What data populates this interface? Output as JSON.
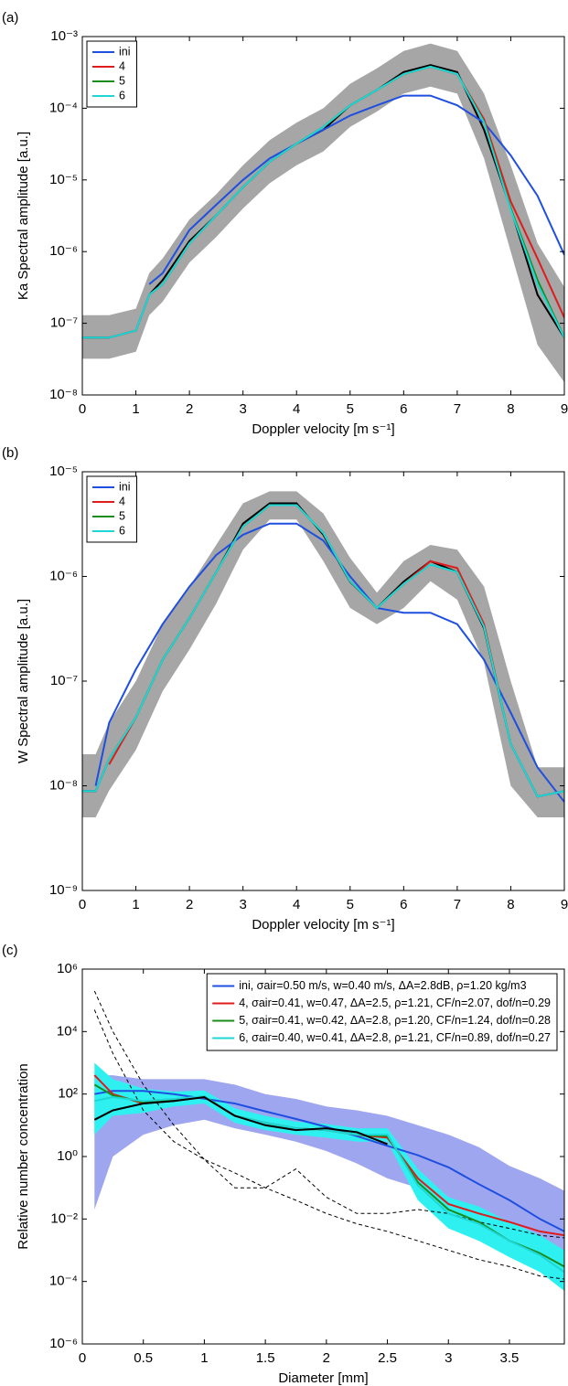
{
  "chart_data": [
    {
      "type": "line",
      "label": "(a)",
      "xlabel": "Doppler velocity [m s⁻¹]",
      "ylabel": "Ka Spectral amplitude [a.u.]",
      "yscale": "log",
      "legend": "upper left",
      "xlim": [
        0,
        9
      ],
      "xticks": [
        0,
        1,
        2,
        3,
        4,
        5,
        6,
        7,
        8,
        9
      ],
      "ylim": [
        1e-08,
        0.001
      ],
      "yticks": [
        {
          "value": 1e-08,
          "label": "10⁻⁸"
        },
        {
          "value": 1e-07,
          "label": "10⁻⁷"
        },
        {
          "value": 1e-06,
          "label": "10⁻⁶"
        },
        {
          "value": 1e-05,
          "label": "10⁻⁵"
        },
        {
          "value": 0.0001,
          "label": "10⁻⁴"
        },
        {
          "value": 0.001,
          "label": "10⁻³"
        }
      ],
      "x": [
        0,
        0.5,
        1,
        1.25,
        1.5,
        2,
        2.5,
        3,
        3.5,
        4,
        4.5,
        5,
        5.5,
        6,
        6.5,
        7,
        7.5,
        8,
        8.5,
        9
      ],
      "bands": [
        {
          "color": "#a6a6a6",
          "upper": [
            1.3e-07,
            1.3e-07,
            1.6e-07,
            5e-07,
            8e-07,
            2.8e-06,
            6.3e-06,
            1.6e-05,
            3.6e-05,
            6.3e-05,
            0.0001,
            0.00022,
            0.00036,
            0.00063,
            0.0008,
            0.00063,
            0.00016,
            1.6e-05,
            1.3e-06,
            3.2e-07
          ],
          "lower": [
            3.2e-08,
            3.2e-08,
            4e-08,
            1.3e-07,
            2e-07,
            7e-07,
            1.6e-06,
            4e-06,
            9e-06,
            1.6e-05,
            2.5e-05,
            5.5e-05,
            9e-05,
            0.00016,
            0.0002,
            0.00016,
            2e-05,
            1e-06,
            5e-08,
            1.5e-08
          ]
        }
      ],
      "observed": {
        "color": "#000000",
        "values": [
          6.3e-08,
          6.3e-08,
          7.9e-08,
          2.5e-07,
          4e-07,
          1.4e-06,
          3.2e-06,
          7.9e-06,
          1.8e-05,
          3.2e-05,
          5e-05,
          0.00011,
          0.00018,
          0.00032,
          0.0004,
          0.00032,
          5e-05,
          4e-06,
          2.5e-07,
          6.3e-08
        ]
      },
      "series": [
        {
          "name": "ini",
          "color": "#1f4fe0",
          "values": [
            null,
            null,
            null,
            3.5e-07,
            5e-07,
            2e-06,
            4.5e-06,
            1e-05,
            2e-05,
            3.2e-05,
            5e-05,
            7.9e-05,
            0.00011,
            0.00015,
            0.00015,
            0.00011,
            6.3e-05,
            2.2e-05,
            6e-06,
            9e-07
          ]
        },
        {
          "name": "4",
          "color": "#e01b1b",
          "values": [
            null,
            null,
            null,
            2.5e-07,
            3.5e-07,
            1.3e-06,
            3.2e-06,
            7.9e-06,
            1.8e-05,
            3.2e-05,
            5.5e-05,
            0.00011,
            0.00018,
            0.0003,
            0.00038,
            0.0003,
            7e-05,
            5e-06,
            8e-07,
            1.2e-07
          ]
        },
        {
          "name": "5",
          "color": "#1a8c1a",
          "values": [
            null,
            null,
            null,
            2.5e-07,
            3.5e-07,
            1.3e-06,
            3.2e-06,
            7.9e-06,
            1.8e-05,
            3.2e-05,
            5.5e-05,
            0.00011,
            0.00018,
            0.0003,
            0.00038,
            0.0003,
            6.5e-05,
            4e-06,
            4e-07,
            6.3e-08
          ]
        },
        {
          "name": "6",
          "color": "#1fd6d6",
          "values": [
            6.3e-08,
            6.3e-08,
            7.9e-08,
            2.5e-07,
            3.5e-07,
            1.3e-06,
            3.2e-06,
            7.9e-06,
            1.8e-05,
            3.2e-05,
            5.5e-05,
            0.00011,
            0.00018,
            0.0003,
            0.00038,
            0.0003,
            6.3e-05,
            3.8e-06,
            3.5e-07,
            6.3e-08
          ]
        }
      ]
    },
    {
      "type": "line",
      "label": "(b)",
      "xlabel": "Doppler velocity [m s⁻¹]",
      "ylabel": "W Spectral amplitude [a.u.]",
      "yscale": "log",
      "legend": "upper left",
      "xlim": [
        0,
        9
      ],
      "xticks": [
        0,
        1,
        2,
        3,
        4,
        5,
        6,
        7,
        8,
        9
      ],
      "ylim": [
        1e-09,
        1e-05
      ],
      "yticks": [
        {
          "value": 1e-09,
          "label": "10⁻⁹"
        },
        {
          "value": 1e-08,
          "label": "10⁻⁸"
        },
        {
          "value": 1e-07,
          "label": "10⁻⁷"
        },
        {
          "value": 1e-06,
          "label": "10⁻⁶"
        },
        {
          "value": 1e-05,
          "label": "10⁻⁵"
        }
      ],
      "x": [
        0,
        0.25,
        0.5,
        1,
        1.5,
        2,
        2.5,
        3,
        3.5,
        4,
        4.5,
        5,
        5.5,
        6,
        6.5,
        7,
        7.5,
        8,
        8.5,
        9
      ],
      "bands": [
        {
          "color": "#a6a6a6",
          "upper": [
            2e-08,
            2e-08,
            4e-08,
            1e-07,
            3.5e-07,
            8e-07,
            2e-06,
            5e-06,
            6.5e-06,
            6.5e-06,
            4e-06,
            1.5e-06,
            7e-07,
            1.4e-06,
            2e-06,
            1.8e-06,
            8e-07,
            1e-07,
            1.5e-08,
            1.5e-08
          ],
          "lower": [
            5e-09,
            5e-09,
            9e-09,
            2.2e-08,
            8e-08,
            2e-07,
            5.5e-07,
            1.8e-06,
            3.5e-06,
            3.5e-06,
            1.4e-06,
            5e-07,
            3.5e-07,
            5e-07,
            9e-07,
            6e-07,
            1.5e-07,
            1e-08,
            5e-09,
            5e-09
          ]
        }
      ],
      "observed": {
        "color": "#000000",
        "values": [
          8.9e-09,
          8.9e-09,
          1.8e-08,
          4.5e-08,
          1.6e-07,
          4e-07,
          1.1e-06,
          3.2e-06,
          5e-06,
          5e-06,
          2.5e-06,
          8.9e-07,
          5e-07,
          8.9e-07,
          1.4e-06,
          1.1e-06,
          3.2e-07,
          2.5e-08,
          7.9e-09,
          8.9e-09
        ]
      },
      "series": [
        {
          "name": "ini",
          "color": "#1f4fe0",
          "values": [
            null,
            1e-08,
            4e-08,
            1.3e-07,
            3.5e-07,
            8e-07,
            1.6e-06,
            2.5e-06,
            3.2e-06,
            3.2e-06,
            2.2e-06,
            1e-06,
            5e-07,
            4.5e-07,
            4.5e-07,
            3.5e-07,
            1.6e-07,
            5e-08,
            1.5e-08,
            7e-09
          ]
        },
        {
          "name": "4",
          "color": "#e01b1b",
          "values": [
            null,
            null,
            1.6e-08,
            4.5e-08,
            1.6e-07,
            4e-07,
            1.1e-06,
            3e-06,
            4.8e-06,
            4.8e-06,
            2.6e-06,
            9e-07,
            5e-07,
            8.5e-07,
            1.4e-06,
            1.2e-06,
            3.5e-07,
            2.5e-08,
            null,
            null
          ]
        },
        {
          "name": "5",
          "color": "#1a8c1a",
          "values": [
            null,
            null,
            1.8e-08,
            4.5e-08,
            1.6e-07,
            4e-07,
            1.1e-06,
            3e-06,
            4.8e-06,
            4.8e-06,
            2.6e-06,
            9e-07,
            5e-07,
            8.5e-07,
            1.3e-06,
            1.1e-06,
            3.3e-07,
            2.5e-08,
            null,
            null
          ]
        },
        {
          "name": "6",
          "color": "#1fd6d6",
          "values": [
            8.9e-09,
            8.9e-09,
            1.8e-08,
            4.5e-08,
            1.6e-07,
            4e-07,
            1.1e-06,
            3e-06,
            4.8e-06,
            4.8e-06,
            2.6e-06,
            9e-07,
            5e-07,
            8.5e-07,
            1.3e-06,
            1.1e-06,
            3.3e-07,
            2.5e-08,
            7.9e-09,
            8.9e-09
          ]
        }
      ]
    },
    {
      "type": "line",
      "label": "(c)",
      "xlabel": "Diameter [mm]",
      "ylabel": "Relative number concentration",
      "yscale": "log",
      "legend": "upper right",
      "xlim": [
        0,
        3.95
      ],
      "xticks": [
        0,
        0.5,
        1,
        1.5,
        2,
        2.5,
        3,
        3.5
      ],
      "ylim": [
        1e-06,
        1000000
      ],
      "yticks": [
        {
          "value": 1e-06,
          "label": "10⁻⁶"
        },
        {
          "value": 0.0001,
          "label": "10⁻⁴"
        },
        {
          "value": 0.01,
          "label": "10⁻²"
        },
        {
          "value": 1,
          "label": "10⁰"
        },
        {
          "value": 100,
          "label": "10²"
        },
        {
          "value": 10000,
          "label": "10⁴"
        },
        {
          "value": 1000000,
          "label": "10⁶"
        }
      ],
      "x": [
        0.1,
        0.25,
        0.5,
        0.75,
        1,
        1.25,
        1.5,
        1.75,
        2,
        2.25,
        2.5,
        2.75,
        3,
        3.25,
        3.5,
        3.75,
        3.95
      ],
      "bands": [
        {
          "color": "#9fa6f0",
          "upper": [
            400,
            400,
            300,
            300,
            300,
            200,
            100,
            70,
            40,
            30,
            20,
            10,
            5,
            2,
            0.5,
            0.2,
            0.08
          ],
          "lower": [
            0.02,
            1,
            5,
            10,
            15,
            8,
            5,
            3,
            1.5,
            0.6,
            0.2,
            0.1,
            0.05,
            0.02,
            0.005,
            0.002,
            0.001
          ]
        },
        {
          "color": "#2ff0f0",
          "upper": [
            1000,
            300,
            150,
            120,
            130,
            35,
            20,
            13,
            11,
            8,
            8,
            0.4,
            0.05,
            0.025,
            0.008,
            0.003,
            0.001
          ],
          "lower": [
            5,
            20,
            25,
            40,
            50,
            12,
            7,
            5,
            4,
            3,
            3,
            0.04,
            0.005,
            0.002,
            0.0006,
            0.0002,
            5e-05
          ]
        }
      ],
      "dashed": [
        {
          "color": "#000000",
          "values": [
            200000,
            10000,
            200,
            10,
            0.8,
            0.1,
            0.1,
            0.4,
            0.05,
            0.015,
            0.015,
            0.02,
            0.015,
            0.008,
            0.005,
            0.003,
            0.0025
          ]
        },
        {
          "color": "#000000",
          "values": [
            50000,
            2000,
            30,
            3,
            0.8,
            0.3,
            0.1,
            0.04,
            0.015,
            0.007,
            0.004,
            0.002,
            0.001,
            0.0005,
            0.0003,
            0.00015,
            0.00012
          ]
        }
      ],
      "observed": {
        "color": "#000000",
        "values": [
          15,
          30,
          50,
          60,
          80,
          20,
          10,
          7,
          8,
          6,
          2.5,
          null,
          null,
          null,
          null,
          null,
          null
        ]
      },
      "series": [
        {
          "name": "ini, σair=0.50 m/s, w=0.40 m/s, ΔA=2.8dB, ρ=1.20 kg/m3",
          "color": "#1f4fe0",
          "values": [
            100,
            126,
            126,
            100,
            71,
            50,
            28,
            16,
            8.9,
            4.5,
            2.2,
            1.1,
            0.45,
            0.13,
            0.04,
            0.01,
            0.004
          ]
        },
        {
          "name": "4, σair=0.41, w=0.47, ΔA=2.5,  ρ=1.21, CF/n=2.07, dof/n=0.29",
          "color": "#e01b1b",
          "values": [
            400,
            100,
            50,
            60,
            80,
            20,
            12,
            8,
            7,
            5,
            4,
            0.2,
            0.03,
            0.015,
            0.008,
            0.004,
            0.003
          ]
        },
        {
          "name": "5, σair=0.41, w=0.42, ΔA=2.8,  ρ=1.20, CF/n=1.24, dof/n=0.28",
          "color": "#1a8c1a",
          "values": [
            200,
            90,
            55,
            65,
            85,
            20,
            12,
            8,
            7,
            5,
            4.5,
            0.15,
            0.02,
            0.008,
            0.002,
            0.0008,
            0.0003
          ]
        },
        {
          "name": "6, σair=0.40, w=0.41, ΔA=2.8,  ρ=1.21, CF/n=0.89, dof/n=0.27",
          "color": "#1fd6d6",
          "values": [
            60,
            80,
            60,
            70,
            85,
            20,
            12,
            8,
            7,
            5,
            5,
            0.12,
            0.015,
            0.007,
            0.002,
            0.0007,
            0.0002
          ]
        }
      ]
    }
  ]
}
